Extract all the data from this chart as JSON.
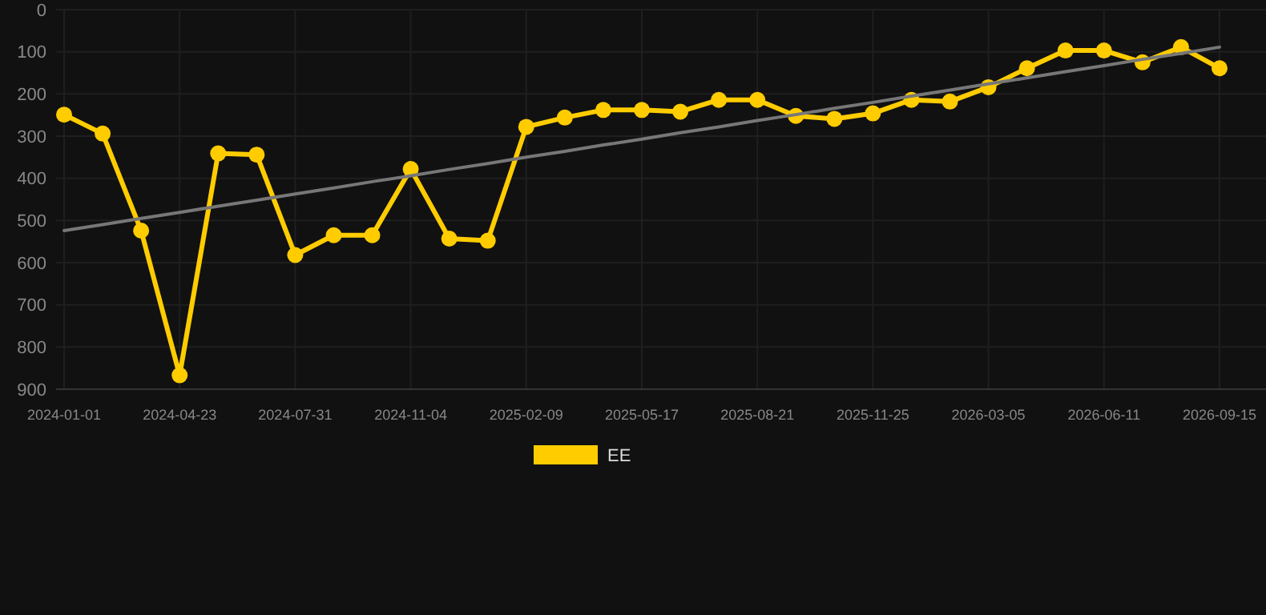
{
  "chart_data": {
    "type": "line",
    "categories": [
      "2024-01-01",
      null,
      null,
      "2024-04-23",
      null,
      null,
      "2024-07-31",
      null,
      null,
      "2024-11-04",
      null,
      null,
      "2025-02-09",
      null,
      null,
      "2025-05-17",
      null,
      null,
      "2025-08-21",
      null,
      null,
      "2025-11-25",
      null,
      null,
      "2026-03-05",
      null,
      null,
      "2026-06-11",
      null,
      null,
      "2026-09-15"
    ],
    "series": [
      {
        "name": "EE",
        "color": "#ffcc00",
        "values": [
          249,
          294,
          524,
          867,
          341,
          344,
          582,
          535,
          535,
          378,
          543,
          548,
          278,
          256,
          238,
          238,
          242,
          214,
          214,
          252,
          259,
          246,
          214,
          218,
          184,
          139,
          97,
          97,
          125,
          89,
          139
        ]
      },
      {
        "type": "line",
        "color": "#777777",
        "marker": "none",
        "values": [
          524,
          510,
          495,
          481,
          466,
          452,
          437,
          423,
          408,
          394,
          379,
          365,
          350,
          336,
          321,
          307,
          292,
          278,
          263,
          249,
          234,
          220,
          205,
          191,
          176,
          162,
          147,
          133,
          118,
          104,
          89
        ]
      }
    ],
    "ylim": [
      900,
      0
    ],
    "yticks": [
      0,
      100,
      200,
      300,
      400,
      500,
      600,
      700,
      800,
      900
    ],
    "grid": true,
    "legend": "bottom",
    "marker": "circle",
    "line_style": "solid"
  }
}
